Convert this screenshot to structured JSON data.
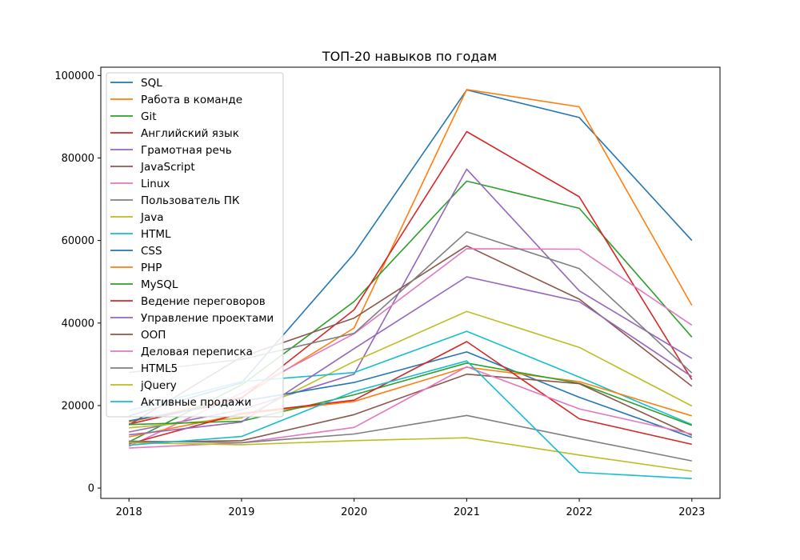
{
  "chart_data": {
    "type": "line",
    "title": "ТОП-20 навыков по годам",
    "xlabel": "",
    "ylabel": "",
    "x": [
      2018,
      2019,
      2020,
      2021,
      2022,
      2023
    ],
    "ylim": [
      -2500,
      102000
    ],
    "yticks": [
      0,
      20000,
      40000,
      60000,
      80000,
      100000
    ],
    "grid": false,
    "legend": "top-left",
    "series": [
      {
        "name": "SQL",
        "color": "#1f77b4",
        "values": [
          17500,
          25500,
          56800,
          96500,
          89800,
          60000
        ]
      },
      {
        "name": "Работа в команде",
        "color": "#ff7f0e",
        "values": [
          16000,
          22000,
          38800,
          96600,
          92400,
          44300
        ]
      },
      {
        "name": "Git",
        "color": "#2ca02c",
        "values": [
          11200,
          25000,
          45200,
          74400,
          67800,
          36600
        ]
      },
      {
        "name": "Английский язык",
        "color": "#d62728",
        "values": [
          15500,
          21800,
          43200,
          86400,
          70600,
          26300
        ]
      },
      {
        "name": "Грамотная речь",
        "color": "#9467bd",
        "values": [
          13600,
          19000,
          27600,
          77300,
          47800,
          31400
        ]
      },
      {
        "name": "JavaScript",
        "color": "#8c564b",
        "values": [
          15300,
          31800,
          41200,
          58700,
          45800,
          24700
        ]
      },
      {
        "name": "Linux",
        "color": "#e377c2",
        "values": [
          10100,
          23000,
          37400,
          58000,
          57900,
          39500
        ]
      },
      {
        "name": "Пользователь ПК",
        "color": "#7f7f7f",
        "values": [
          28000,
          31200,
          37500,
          62100,
          53200,
          27900
        ]
      },
      {
        "name": "Java",
        "color": "#bcbd22",
        "values": [
          14600,
          17000,
          30700,
          42800,
          34100,
          19900
        ]
      },
      {
        "name": "HTML",
        "color": "#17becf",
        "values": [
          18800,
          25800,
          28000,
          38000,
          26900,
          15400
        ]
      },
      {
        "name": "CSS",
        "color": "#1f77b4",
        "values": [
          16300,
          21000,
          25600,
          33000,
          22000,
          12300
        ]
      },
      {
        "name": "PHP",
        "color": "#ff7f0e",
        "values": [
          12400,
          17900,
          21000,
          29300,
          25800,
          17500
        ]
      },
      {
        "name": "MySQL",
        "color": "#2ca02c",
        "values": [
          15400,
          16200,
          22600,
          30300,
          25400,
          15200
        ]
      },
      {
        "name": "Ведение переговоров",
        "color": "#d62728",
        "values": [
          10700,
          18100,
          21300,
          35500,
          16800,
          10600
        ]
      },
      {
        "name": "Управление проектами",
        "color": "#9467bd",
        "values": [
          12900,
          16000,
          33800,
          51200,
          45200,
          27000
        ]
      },
      {
        "name": "ООП",
        "color": "#8c564b",
        "values": [
          11100,
          11500,
          17800,
          27600,
          25300,
          12800
        ]
      },
      {
        "name": "Деловая переписка",
        "color": "#e377c2",
        "values": [
          9700,
          11000,
          14700,
          29400,
          19200,
          13100
        ]
      },
      {
        "name": "HTML5",
        "color": "#7f7f7f",
        "values": [
          11400,
          11000,
          13100,
          17600,
          12000,
          6600
        ]
      },
      {
        "name": "jQuery",
        "color": "#bcbd22",
        "values": [
          11000,
          10500,
          11500,
          12200,
          8000,
          4100
        ]
      },
      {
        "name": "Активные продажи",
        "color": "#17becf",
        "values": [
          10400,
          12500,
          23400,
          30800,
          3800,
          2300
        ]
      }
    ]
  }
}
